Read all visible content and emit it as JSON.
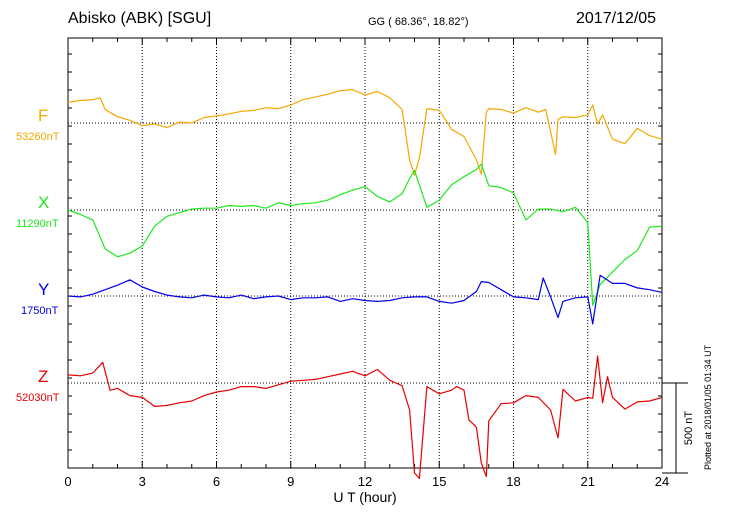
{
  "header": {
    "station": "Abisko (ABK)  [SGU]",
    "coords": "GG ( 68.36°,  18.82°)",
    "date": "2017/12/05"
  },
  "footer": {
    "plotted": "Plotted at 2018/01/05 01:34 UT",
    "scale": "500 nT"
  },
  "chart_data": {
    "type": "line",
    "xlabel": "U T (hour)",
    "xlim": [
      0,
      24
    ],
    "xticks": [
      0,
      3,
      6,
      9,
      12,
      15,
      18,
      21,
      24
    ],
    "scale_bar_nT": 500,
    "grid": true,
    "series": [
      {
        "name": "F",
        "baseline": "53260nT",
        "color": "#f5a800",
        "x": [
          0,
          0.5,
          1,
          1.3,
          1.5,
          2,
          2.5,
          3,
          3.5,
          4,
          4.5,
          5,
          5.5,
          6,
          6.5,
          7,
          7.5,
          8,
          8.5,
          9,
          9.5,
          10,
          10.5,
          11,
          11.5,
          12,
          12.5,
          13,
          13.5,
          13.8,
          14,
          14.2,
          14.5,
          15,
          15.5,
          16,
          16.5,
          16.7,
          16.9,
          17,
          17.5,
          18,
          18.5,
          19,
          19.3,
          19.7,
          19.8,
          20,
          20.5,
          21,
          21.2,
          21.4,
          21.6,
          22,
          22.5,
          23,
          23.5,
          24
        ],
        "y": [
          115,
          125,
          130,
          140,
          75,
          35,
          15,
          -15,
          -5,
          -25,
          5,
          0,
          30,
          40,
          50,
          65,
          70,
          85,
          80,
          100,
          130,
          145,
          160,
          180,
          185,
          155,
          175,
          140,
          75,
          -205,
          -290,
          -195,
          80,
          70,
          -35,
          -75,
          -205,
          -285,
          60,
          80,
          75,
          55,
          85,
          60,
          75,
          -175,
          20,
          35,
          30,
          45,
          100,
          -5,
          45,
          -90,
          -115,
          -30,
          -70,
          -90
        ]
      },
      {
        "name": "X",
        "baseline": "11290nT",
        "color": "#1ee81e",
        "x": [
          0,
          0.5,
          1,
          1.5,
          2,
          2.5,
          3,
          3.5,
          4,
          4.5,
          5,
          5.5,
          6,
          6.5,
          7,
          7.5,
          8,
          8.5,
          9,
          9.5,
          10,
          10.5,
          11,
          11.5,
          12,
          12.5,
          13,
          13.5,
          13.8,
          14,
          14.5,
          15,
          15.5,
          16,
          16.5,
          16.7,
          17,
          17.5,
          18,
          18.5,
          19,
          19.5,
          20,
          20.5,
          21,
          21.2,
          21.5,
          22,
          22.5,
          23,
          23.5,
          24
        ],
        "y": [
          0,
          -25,
          -55,
          -215,
          -260,
          -240,
          -200,
          -90,
          -35,
          -15,
          5,
          10,
          10,
          25,
          20,
          25,
          10,
          40,
          25,
          35,
          40,
          55,
          85,
          110,
          130,
          75,
          45,
          90,
          175,
          220,
          15,
          55,
          140,
          185,
          225,
          255,
          135,
          125,
          95,
          -55,
          5,
          5,
          -10,
          15,
          -70,
          -530,
          -415,
          -345,
          -275,
          -225,
          -95,
          -90
        ]
      },
      {
        "name": "Y",
        "baseline": "1750nT",
        "color": "#0000e8",
        "x": [
          0,
          0.5,
          1,
          1.5,
          2,
          2.5,
          3,
          3.5,
          4,
          4.5,
          5,
          5.5,
          6,
          6.5,
          7,
          7.5,
          8,
          8.5,
          9,
          9.5,
          10,
          10.5,
          11,
          11.5,
          12,
          12.5,
          13,
          13.5,
          14,
          14.5,
          15,
          15.5,
          16,
          16.5,
          16.7,
          17,
          17.5,
          18,
          18.5,
          19,
          19.2,
          19.5,
          19.8,
          20,
          20.5,
          21,
          21.2,
          21.5,
          22,
          22.5,
          23,
          23.5,
          24
        ],
        "y": [
          0,
          -5,
          10,
          35,
          60,
          90,
          50,
          25,
          5,
          -5,
          -10,
          5,
          -5,
          -10,
          5,
          -15,
          -5,
          0,
          -20,
          -10,
          -10,
          -5,
          -30,
          -15,
          -25,
          -30,
          -25,
          -10,
          -5,
          -5,
          -30,
          -40,
          -25,
          25,
          80,
          75,
          35,
          -5,
          -10,
          -20,
          100,
          -5,
          -120,
          -30,
          -10,
          -5,
          -155,
          115,
          70,
          70,
          45,
          35,
          20
        ]
      },
      {
        "name": "Z",
        "baseline": "52030nT",
        "color": "#e60000",
        "x": [
          0,
          0.5,
          1,
          1.4,
          1.7,
          2,
          2.5,
          3,
          3.5,
          4,
          4.5,
          5,
          5.5,
          6,
          6.5,
          7,
          7.5,
          8,
          8.5,
          9,
          9.5,
          10,
          10.5,
          11,
          11.5,
          12,
          12.5,
          13,
          13.5,
          13.8,
          14,
          14.2,
          14.5,
          15,
          15.5,
          15.7,
          16,
          16.2,
          16.5,
          16.7,
          16.9,
          17,
          17.5,
          18,
          18.5,
          19,
          19.5,
          19.8,
          20,
          20.5,
          21,
          21.2,
          21.4,
          21.6,
          21.8,
          22,
          22.5,
          23,
          23.5,
          24
        ],
        "y": [
          45,
          40,
          55,
          115,
          -40,
          -30,
          -70,
          -80,
          -130,
          -125,
          -110,
          -100,
          -70,
          -50,
          -40,
          -20,
          -20,
          -30,
          -10,
          10,
          15,
          20,
          35,
          50,
          65,
          40,
          75,
          15,
          -15,
          -150,
          -500,
          -530,
          -20,
          -60,
          -40,
          -20,
          -40,
          -205,
          -245,
          -445,
          -520,
          -210,
          -115,
          -110,
          -70,
          -80,
          -150,
          -305,
          -35,
          -100,
          -80,
          -85,
          150,
          -110,
          35,
          -80,
          -145,
          -105,
          -100,
          -80
        ]
      }
    ]
  }
}
